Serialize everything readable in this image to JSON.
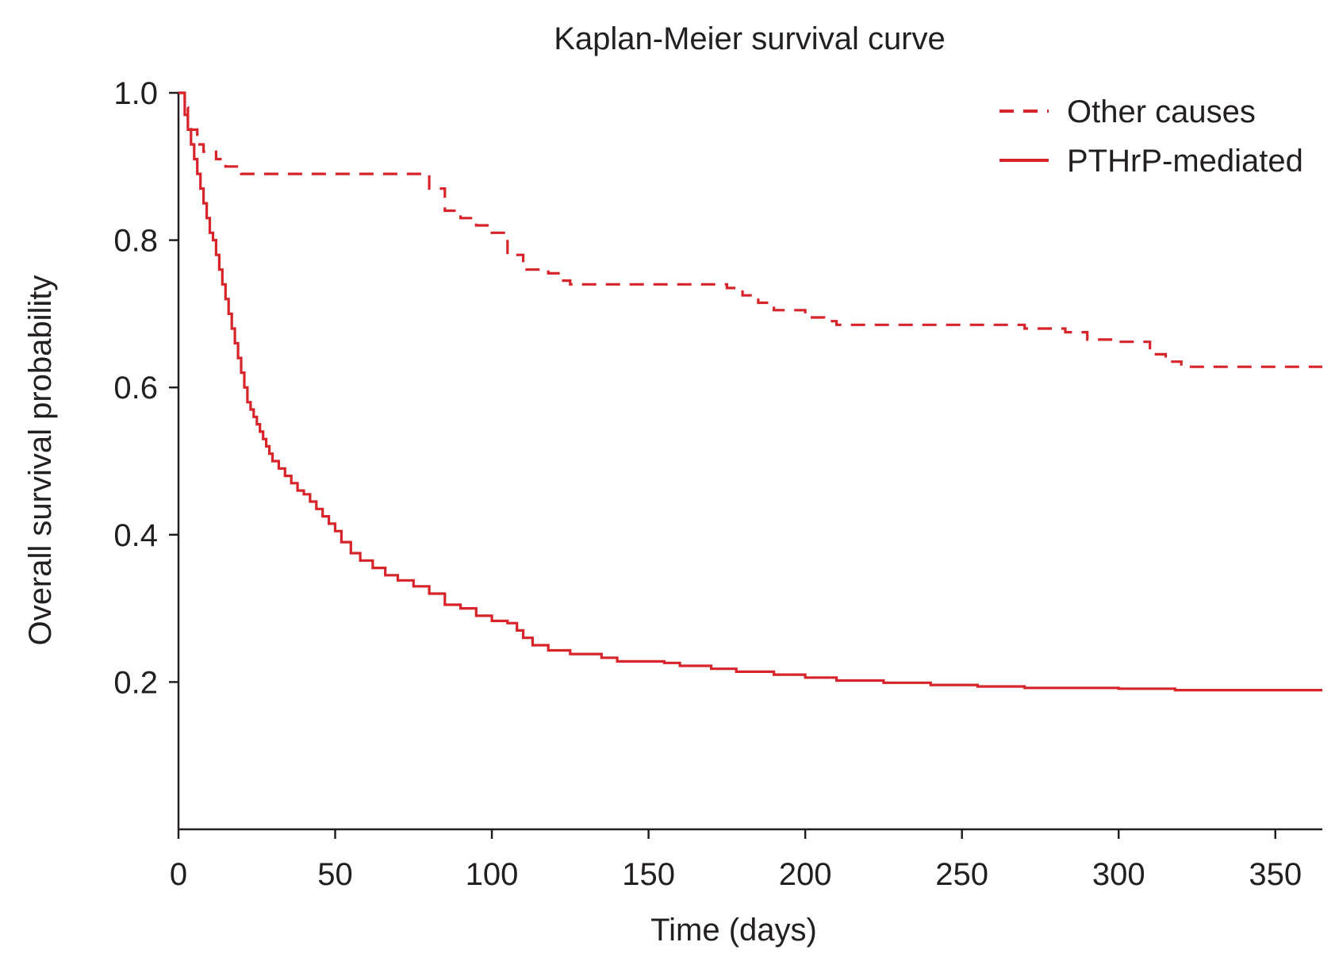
{
  "chart_data": {
    "type": "line",
    "title": "Kaplan-Meier survival curve",
    "xlabel": "Time (days)",
    "ylabel": "Overall survival probability",
    "xlim": [
      0,
      365
    ],
    "ylim": [
      0,
      1.0
    ],
    "xticks": [
      0,
      50,
      100,
      150,
      200,
      250,
      300,
      350
    ],
    "xtick_labels": [
      "0",
      "50",
      "100",
      "150",
      "200",
      "250",
      "300",
      "350"
    ],
    "yticks": [
      0.2,
      0.4,
      0.6,
      0.8,
      1.0
    ],
    "ytick_labels": [
      "0.2",
      "0.4",
      "0.6",
      "0.8",
      "1.0"
    ],
    "grid": false,
    "legend_position": "top-right",
    "line_color": "#d7242a",
    "series": [
      {
        "name": "Other causes",
        "style": "dashed",
        "x": [
          0,
          2,
          3,
          4,
          6,
          8,
          12,
          15,
          20,
          75,
          80,
          85,
          90,
          95,
          100,
          105,
          110,
          118,
          122,
          125,
          170,
          175,
          180,
          185,
          190,
          200,
          206,
          210,
          265,
          270,
          283,
          290,
          300,
          310,
          315,
          320,
          365
        ],
        "y": [
          1.0,
          0.98,
          0.96,
          0.95,
          0.93,
          0.92,
          0.91,
          0.9,
          0.89,
          0.89,
          0.87,
          0.84,
          0.83,
          0.82,
          0.81,
          0.78,
          0.76,
          0.755,
          0.745,
          0.74,
          0.74,
          0.735,
          0.725,
          0.715,
          0.705,
          0.695,
          0.69,
          0.685,
          0.685,
          0.68,
          0.675,
          0.665,
          0.662,
          0.645,
          0.635,
          0.628,
          0.628
        ]
      },
      {
        "name": "PTHrP-mediated",
        "style": "solid",
        "x": [
          0,
          2,
          3,
          4,
          5,
          6,
          7,
          8,
          9,
          10,
          11,
          12,
          13,
          14,
          15,
          16,
          17,
          18,
          19,
          20,
          21,
          22,
          23,
          24,
          25,
          26,
          27,
          28,
          29,
          30,
          32,
          34,
          36,
          38,
          40,
          42,
          44,
          46,
          48,
          50,
          52,
          55,
          58,
          62,
          66,
          70,
          75,
          80,
          85,
          90,
          95,
          100,
          105,
          108,
          110,
          113,
          118,
          125,
          135,
          140,
          155,
          160,
          170,
          178,
          190,
          200,
          210,
          225,
          240,
          255,
          270,
          300,
          318,
          365
        ],
        "y": [
          1.0,
          0.97,
          0.95,
          0.93,
          0.91,
          0.89,
          0.87,
          0.85,
          0.83,
          0.81,
          0.8,
          0.78,
          0.76,
          0.74,
          0.72,
          0.7,
          0.68,
          0.66,
          0.64,
          0.62,
          0.6,
          0.58,
          0.57,
          0.56,
          0.55,
          0.54,
          0.53,
          0.52,
          0.51,
          0.5,
          0.49,
          0.48,
          0.47,
          0.46,
          0.455,
          0.445,
          0.435,
          0.425,
          0.415,
          0.405,
          0.39,
          0.375,
          0.365,
          0.355,
          0.345,
          0.338,
          0.33,
          0.32,
          0.305,
          0.3,
          0.29,
          0.283,
          0.28,
          0.27,
          0.26,
          0.25,
          0.243,
          0.238,
          0.233,
          0.228,
          0.226,
          0.222,
          0.218,
          0.214,
          0.21,
          0.206,
          0.202,
          0.199,
          0.196,
          0.194,
          0.192,
          0.191,
          0.189,
          0.189
        ]
      }
    ]
  }
}
